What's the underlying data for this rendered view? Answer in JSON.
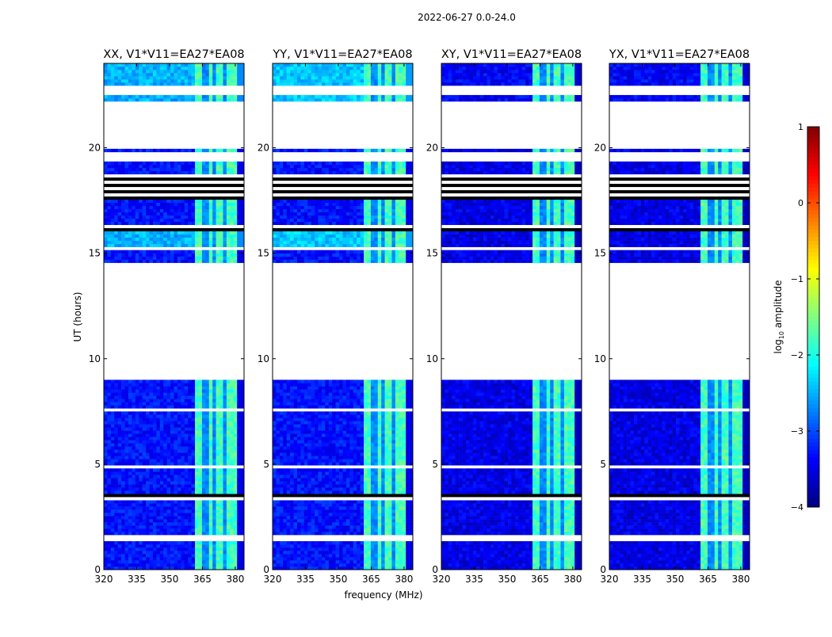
{
  "chart_data": {
    "type": "heatmap",
    "title": "2022-06-27 0.0-24.0",
    "xlabel": "frequency (MHz)",
    "ylabel": "UT (hours)",
    "xlim": [
      320,
      384
    ],
    "ylim": [
      0,
      24
    ],
    "xticks": [
      "320",
      "335",
      "350",
      "365",
      "380"
    ],
    "xtick_values": [
      320,
      335,
      350,
      365,
      380
    ],
    "yticks": [
      "0",
      "5",
      "10",
      "15",
      "20"
    ],
    "ytick_values": [
      0,
      5,
      10,
      15,
      20
    ],
    "panels": [
      {
        "title": "XX, V1*V11=EA27*EA08",
        "base_level": -3.3,
        "top_level": -2.5
      },
      {
        "title": "YY, V1*V11=EA27*EA08",
        "base_level": -3.3,
        "top_level": -2.4
      },
      {
        "title": "XY, V1*V11=EA27*EA08",
        "base_level": -3.5,
        "top_level": -3.4
      },
      {
        "title": "YX, V1*V11=EA27*EA08",
        "base_level": -3.5,
        "top_level": -3.4
      }
    ],
    "bright_band_mhz": [
      362,
      380
    ],
    "bright_band_level": -1.8,
    "band_gaps_mhz": [
      366.5,
      371,
      375.5
    ],
    "time_segments": [
      {
        "start": 0,
        "end": 1.4,
        "state": "data"
      },
      {
        "start": 1.4,
        "end": 1.7,
        "state": "blank"
      },
      {
        "start": 1.7,
        "end": 3.3,
        "state": "data"
      },
      {
        "start": 3.3,
        "end": 3.6,
        "state": "flagged"
      },
      {
        "start": 3.6,
        "end": 4.8,
        "state": "data"
      },
      {
        "start": 4.8,
        "end": 4.95,
        "state": "blank"
      },
      {
        "start": 4.95,
        "end": 7.5,
        "state": "data"
      },
      {
        "start": 7.5,
        "end": 7.7,
        "state": "blank"
      },
      {
        "start": 7.7,
        "end": 9.0,
        "state": "data"
      },
      {
        "start": 9.0,
        "end": 14.5,
        "state": "blank"
      },
      {
        "start": 14.5,
        "end": 15.2,
        "state": "data"
      },
      {
        "start": 15.2,
        "end": 15.3,
        "state": "blank"
      },
      {
        "start": 15.3,
        "end": 16.0,
        "state": "data"
      },
      {
        "start": 16.0,
        "end": 16.4,
        "state": "flagged"
      },
      {
        "start": 16.4,
        "end": 17.6,
        "state": "data"
      },
      {
        "start": 17.6,
        "end": 18.7,
        "state": "flagged"
      },
      {
        "start": 18.7,
        "end": 19.4,
        "state": "data"
      },
      {
        "start": 19.4,
        "end": 19.85,
        "state": "blank"
      },
      {
        "start": 19.85,
        "end": 20.0,
        "state": "data"
      },
      {
        "start": 20.0,
        "end": 22.2,
        "state": "blank"
      },
      {
        "start": 22.2,
        "end": 22.5,
        "state": "data"
      },
      {
        "start": 22.5,
        "end": 22.9,
        "state": "blank"
      },
      {
        "start": 22.9,
        "end": 24.0,
        "state": "data"
      }
    ],
    "colorbar": {
      "label": "log10 amplitude",
      "label_main": "log",
      "label_sub": "10",
      "label_rest": " amplitude",
      "range": [
        -4,
        1
      ],
      "ticks": [
        "1",
        "0",
        "−1",
        "−2",
        "−3",
        "−4"
      ],
      "tick_values": [
        1,
        0,
        -1,
        -2,
        -3,
        -4
      ],
      "colormap": "jet"
    }
  }
}
